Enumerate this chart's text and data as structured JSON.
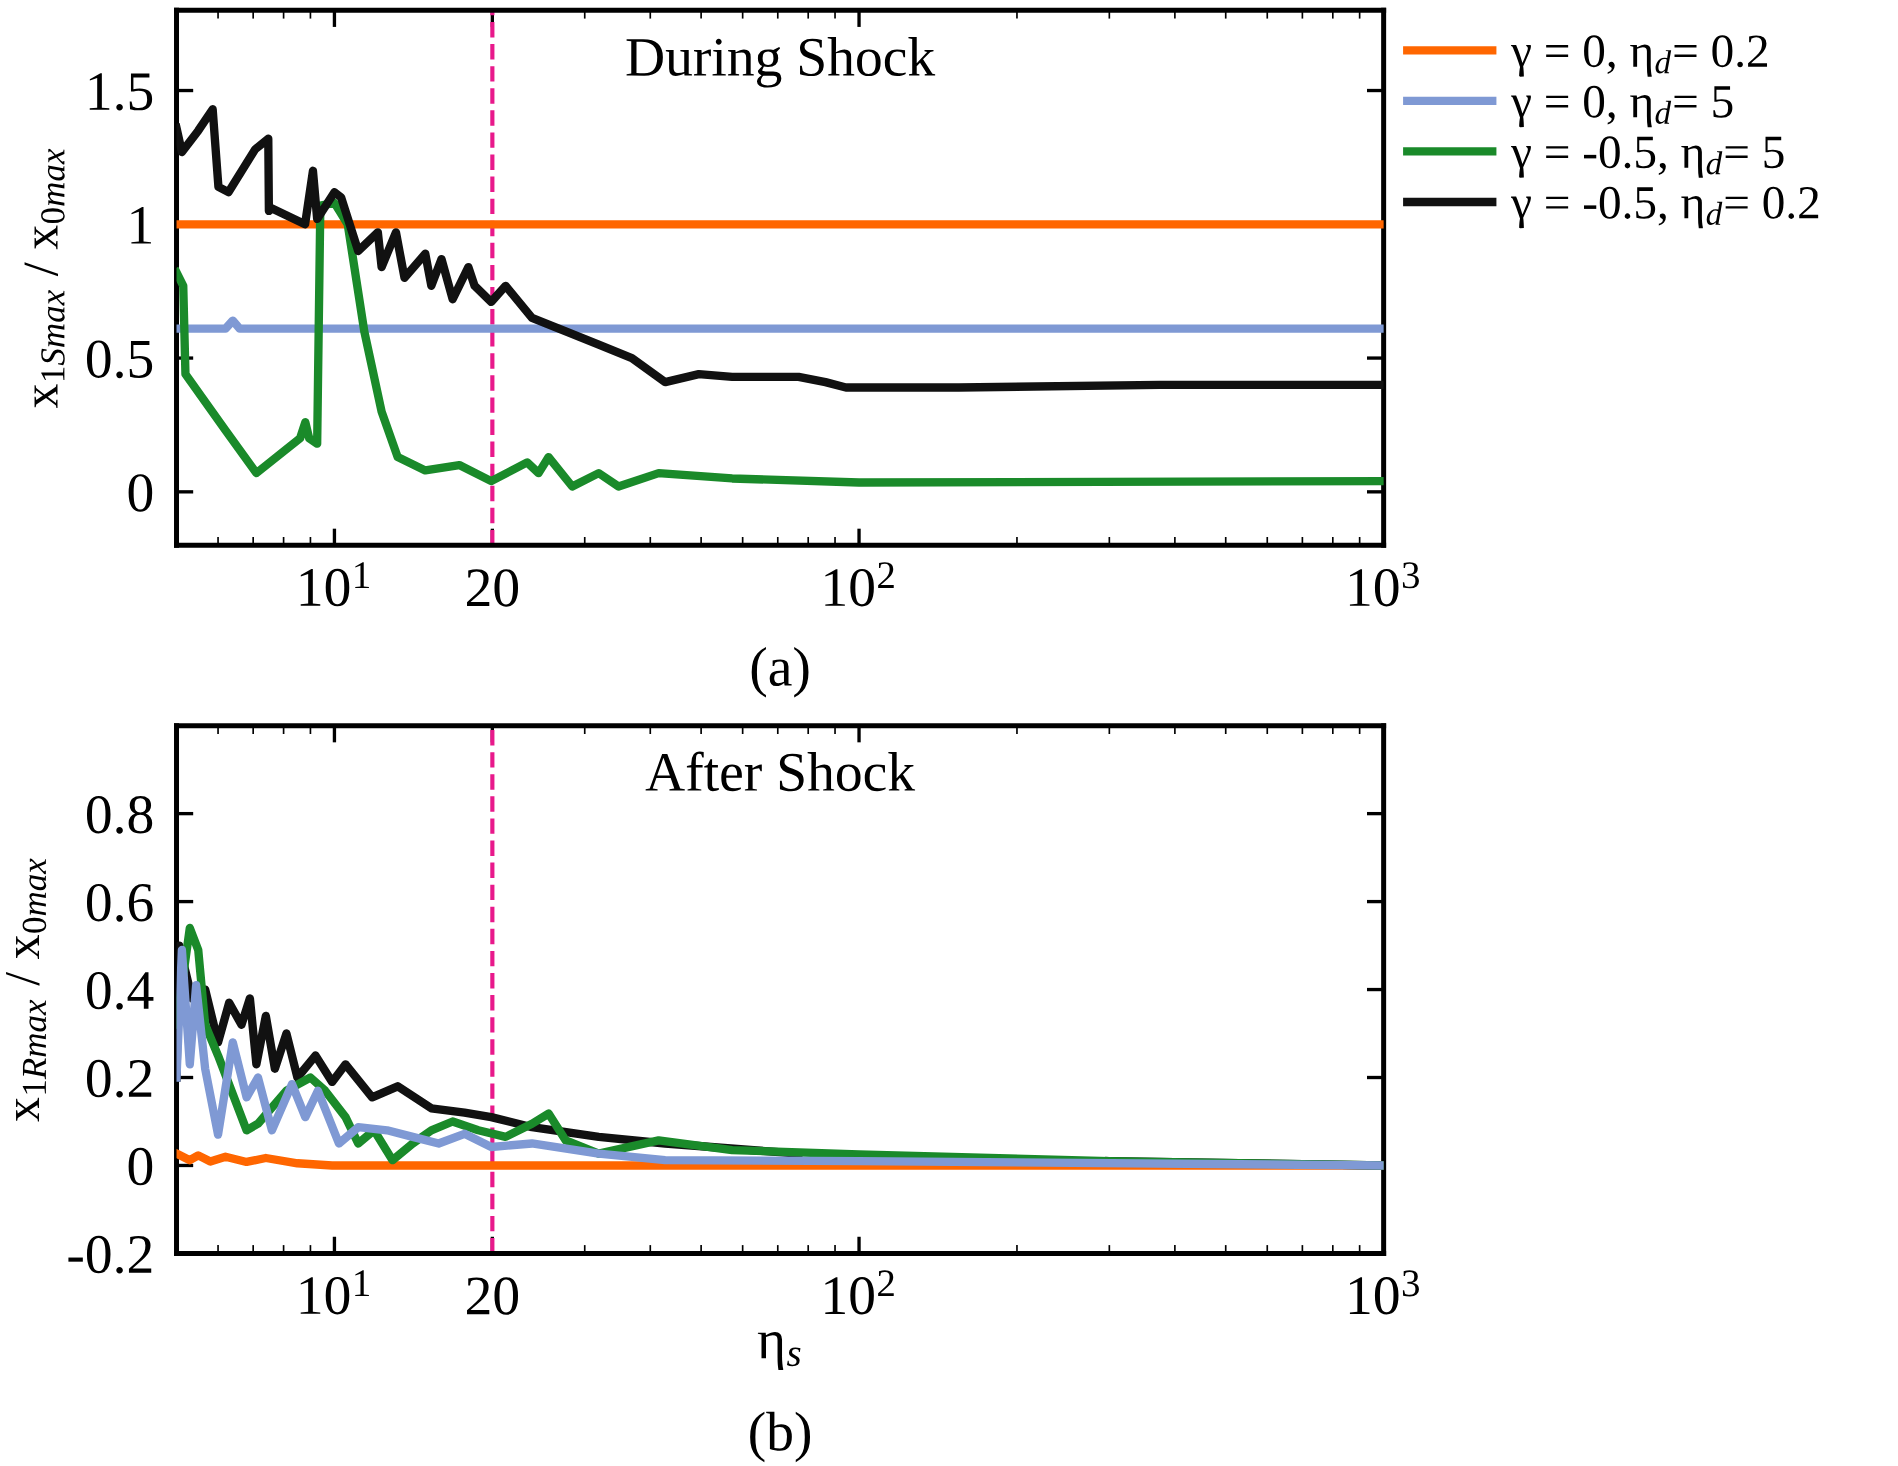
{
  "chart_data": [
    {
      "type": "line",
      "log": "x",
      "ylabel": "x$_{1Smax}$ / x$_{0max}$",
      "legend": "right",
      "line_style": "solid",
      "annotations": [
        "During Shock",
        "(a)"
      ],
      "xlim": [
        5,
        1000
      ],
      "ylim": [
        -0.2,
        1.8
      ],
      "xticks": [
        {
          "value": 10,
          "label": "10$^{1}$"
        },
        20,
        {
          "value": 100,
          "label": "10$^{2}$"
        },
        {
          "value": 1000,
          "label": "10$^{3}$"
        }
      ],
      "yticks": [
        0,
        0.5,
        1,
        1.5
      ],
      "ref_lines": [
        {
          "axis": "x",
          "value": 20,
          "label": null,
          "color": "#e8198b",
          "line_style": "dashed"
        }
      ],
      "series": [
        {
          "name": "γ = 0, η$_{d}$= 0.2",
          "color": "#ff6600",
          "x": [
            5,
            1000
          ],
          "values": [
            1.0,
            1.0
          ]
        },
        {
          "name": "γ = 0, η$_{d}$= 5",
          "color": "#7f99d4",
          "x": [
            5,
            6.2,
            6.4,
            6.6,
            1000
          ],
          "values": [
            0.61,
            0.61,
            0.64,
            0.61,
            0.61
          ]
        },
        {
          "name": "γ = -0.5, η$_{d}$= 5",
          "color": "#1a8a2a",
          "x": [
            5.0,
            5.15,
            5.2,
            6.2,
            7.1,
            8.6,
            8.8,
            8.95,
            9.27,
            9.4,
            10.0,
            10.6,
            11.4,
            12.3,
            13.2,
            14.9,
            17.3,
            19.9,
            23.3,
            24.5,
            25.6,
            28.4,
            31.9,
            34.8,
            41.5,
            57.3,
            100,
            1000
          ],
          "values": [
            0.82,
            0.77,
            0.44,
            0.23,
            0.07,
            0.2,
            0.26,
            0.2,
            0.18,
            1.07,
            1.08,
            1.0,
            0.6,
            0.3,
            0.13,
            0.08,
            0.1,
            0.04,
            0.11,
            0.07,
            0.13,
            0.02,
            0.07,
            0.02,
            0.07,
            0.05,
            0.035,
            0.04
          ]
        },
        {
          "name": "γ = -0.5, η$_{d}$= 0.2",
          "color": "#111111",
          "x": [
            5.0,
            5.12,
            5.5,
            5.86,
            6.01,
            6.28,
            7.06,
            7.48,
            7.5,
            7.59,
            8.79,
            9.1,
            9.27,
            10.0,
            10.3,
            11.1,
            12.1,
            12.3,
            13.1,
            13.6,
            14.9,
            15.3,
            16.0,
            16.8,
            18.0,
            18.5,
            19.9,
            21.2,
            23.8,
            27.6,
            31.9,
            36.9,
            42.7,
            49.5,
            57.3,
            76.7,
            86.3,
            94.4,
            155,
            374,
            1000
          ],
          "values": [
            1.36,
            1.27,
            1.35,
            1.43,
            1.14,
            1.12,
            1.28,
            1.32,
            1.05,
            1.06,
            1.0,
            1.2,
            1.02,
            1.12,
            1.1,
            0.9,
            0.97,
            0.84,
            0.97,
            0.8,
            0.89,
            0.77,
            0.87,
            0.72,
            0.84,
            0.77,
            0.71,
            0.77,
            0.65,
            0.6,
            0.55,
            0.5,
            0.41,
            0.44,
            0.43,
            0.43,
            0.41,
            0.39,
            0.39,
            0.4,
            0.4
          ]
        }
      ]
    },
    {
      "type": "line",
      "log": "x",
      "ylabel": "x$_{1Rmax}$ / x$_{0max}$",
      "xlabel": "η$_{s}$",
      "line_style": "solid",
      "annotations": [
        "After Shock",
        "(b)"
      ],
      "xlim": [
        5,
        1000
      ],
      "ylim": [
        -0.2,
        1.0
      ],
      "xticks": [
        {
          "value": 10,
          "label": "10$^{1}$"
        },
        20,
        {
          "value": 100,
          "label": "10$^{2}$"
        },
        {
          "value": 1000,
          "label": "10$^{3}$"
        }
      ],
      "yticks": [
        -0.2,
        0,
        0.2,
        0.4,
        0.6,
        0.8
      ],
      "ref_lines": [
        {
          "axis": "x",
          "value": 20,
          "label": null,
          "color": "#e8198b",
          "line_style": "dashed"
        }
      ],
      "series": [
        {
          "color": "#ff6600",
          "x": [
            5.0,
            5.3,
            5.5,
            5.8,
            6.2,
            6.8,
            7.4,
            8.5,
            9.9,
            1000
          ],
          "values": [
            0.027,
            0.012,
            0.023,
            0.009,
            0.02,
            0.008,
            0.017,
            0.005,
            0.0,
            0.0
          ]
        },
        {
          "color": "#111111",
          "x": [
            5.0,
            5.06,
            5.35,
            5.67,
            6.0,
            6.3,
            6.65,
            6.9,
            7.1,
            7.4,
            7.7,
            8.1,
            8.5,
            9.2,
            9.9,
            10.5,
            11.8,
            13.2,
            15.3,
            17.7,
            19.9,
            23.8,
            31.9,
            42.7,
            76.7,
            100,
            300,
            1000
          ],
          "values": [
            0.2,
            0.5,
            0.38,
            0.4,
            0.28,
            0.37,
            0.32,
            0.38,
            0.23,
            0.34,
            0.22,
            0.3,
            0.2,
            0.25,
            0.19,
            0.23,
            0.155,
            0.18,
            0.13,
            0.12,
            0.11,
            0.087,
            0.065,
            0.05,
            0.027,
            null,
            0.01,
            0.0
          ]
        },
        {
          "color": "#1a8a2a",
          "x": [
            5.0,
            5.3,
            5.5,
            5.67,
            6.0,
            6.8,
            7.15,
            8.1,
            9.0,
            9.6,
            10.5,
            11.1,
            11.9,
            12.9,
            14.1,
            15.3,
            16.8,
            18.8,
            21.2,
            23.8,
            25.6,
            27.6,
            31.9,
            41.5,
            57.3,
            100,
            300,
            1000
          ],
          "values": [
            0.32,
            0.54,
            0.49,
            0.32,
            0.25,
            0.08,
            0.095,
            0.17,
            0.2,
            0.17,
            0.11,
            0.05,
            0.08,
            0.012,
            0.05,
            0.08,
            0.1,
            0.08,
            0.065,
            0.095,
            0.118,
            0.057,
            0.027,
            0.057,
            0.035,
            0.025,
            0.01,
            0.0
          ]
        },
        {
          "color": "#7f99d4",
          "x": [
            5.0,
            5.12,
            5.3,
            5.45,
            5.67,
            6.0,
            6.4,
            6.8,
            7.15,
            7.6,
            8.3,
            8.8,
            9.3,
            10.2,
            11.1,
            12.6,
            14.1,
            15.8,
            17.7,
            19.9,
            23.8,
            31.9,
            42.7,
            100,
            1000
          ],
          "values": [
            0.2,
            0.49,
            0.23,
            0.41,
            0.22,
            0.07,
            0.28,
            0.155,
            0.2,
            0.08,
            0.185,
            0.11,
            0.17,
            0.05,
            0.087,
            0.08,
            0.065,
            0.05,
            0.072,
            0.042,
            0.05,
            0.027,
            0.012,
            0.01,
            0.0
          ]
        }
      ]
    }
  ]
}
